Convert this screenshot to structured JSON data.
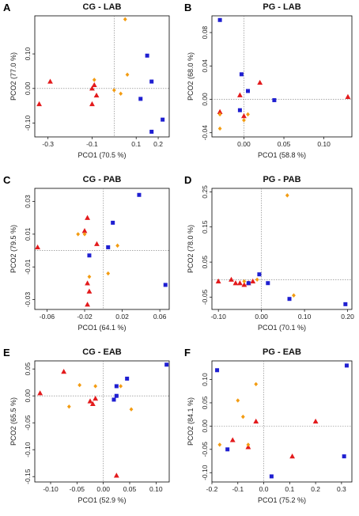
{
  "colors": {
    "LAB_red": "#e31a1c",
    "orange": "#f39c12",
    "blue": "#1f1fd1"
  },
  "chart_data": [
    {
      "letter": "A",
      "title": "CG - LAB",
      "type": "scatter",
      "xlabel": "PCO1 (70.5 %)",
      "ylabel": "PCO2 (77.0 %)",
      "xlim": [
        -0.36,
        0.25
      ],
      "ylim": [
        -0.14,
        0.21
      ],
      "xticks": [
        -0.3,
        -0.1,
        0.0,
        0.1,
        0.2
      ],
      "xticklabels": [
        "-0.3",
        "-0.1",
        "0.1",
        "0.2"
      ],
      "xticks_show": [
        -0.3,
        -0.1,
        0.1,
        0.2
      ],
      "yticks": [
        -0.1,
        0.0,
        0.1
      ],
      "yticklabels": [
        "-0.10",
        "0.00",
        "0.10"
      ],
      "series": [
        {
          "shape": "triangle",
          "color": "#e31a1c",
          "points": [
            [
              -0.34,
              -0.045
            ],
            [
              -0.29,
              0.02
            ],
            [
              -0.1,
              0.0
            ],
            [
              -0.09,
              0.01
            ],
            [
              -0.08,
              -0.02
            ],
            [
              -0.1,
              -0.045
            ]
          ]
        },
        {
          "shape": "diamond",
          "color": "#f39c12",
          "points": [
            [
              -0.09,
              0.025
            ],
            [
              0.0,
              -0.005
            ],
            [
              0.03,
              -0.015
            ],
            [
              0.06,
              0.04
            ],
            [
              0.05,
              0.2
            ]
          ]
        },
        {
          "shape": "square",
          "color": "#1f1fd1",
          "points": [
            [
              0.15,
              0.095
            ],
            [
              0.17,
              0.02
            ],
            [
              0.12,
              -0.03
            ],
            [
              0.22,
              -0.09
            ],
            [
              0.17,
              -0.125
            ]
          ]
        }
      ]
    },
    {
      "letter": "B",
      "title": "PG - LAB",
      "type": "scatter",
      "xlabel": "PCO1 (58.8 %)",
      "ylabel": "PCO2 (68.0 %)",
      "xlim": [
        -0.04,
        0.135
      ],
      "ylim": [
        -0.045,
        0.1
      ],
      "xticks_show": [
        0.0,
        0.05,
        0.1
      ],
      "xticklabels": [
        "0.00",
        "0.05",
        "0.10"
      ],
      "yticks": [
        -0.04,
        0.0,
        0.04,
        0.08
      ],
      "yticklabels": [
        "-0.04",
        "0.00",
        "0.04",
        "0.08"
      ],
      "series": [
        {
          "shape": "triangle",
          "color": "#e31a1c",
          "points": [
            [
              -0.03,
              -0.015
            ],
            [
              -0.005,
              0.005
            ],
            [
              0.02,
              0.02
            ],
            [
              0.0,
              -0.02
            ],
            [
              0.13,
              0.003
            ]
          ]
        },
        {
          "shape": "diamond",
          "color": "#f39c12",
          "points": [
            [
              -0.03,
              -0.018
            ],
            [
              -0.03,
              -0.035
            ],
            [
              0.0,
              -0.025
            ],
            [
              0.005,
              -0.018
            ]
          ]
        },
        {
          "shape": "square",
          "color": "#1f1fd1",
          "points": [
            [
              -0.03,
              0.095
            ],
            [
              -0.003,
              0.03
            ],
            [
              0.005,
              0.01
            ],
            [
              0.038,
              -0.001
            ],
            [
              -0.005,
              -0.013
            ]
          ]
        }
      ]
    },
    {
      "letter": "C",
      "title": "CG - PAB",
      "type": "scatter",
      "xlabel": "PCO1 (64.1 %)",
      "ylabel": "PCO2 (79.5 %)",
      "xlim": [
        -0.073,
        0.07
      ],
      "ylim": [
        -0.036,
        0.038
      ],
      "xticks_show": [
        -0.06,
        -0.02,
        0.02,
        0.06
      ],
      "xticklabels": [
        "-0.06",
        "-0.02",
        "0.02",
        "0.06"
      ],
      "yticks": [
        -0.03,
        -0.01,
        0.01,
        0.03
      ],
      "yticklabels": [
        "-0.03",
        "-0.01",
        "0.01",
        "0.03"
      ],
      "series": [
        {
          "shape": "triangle",
          "color": "#e31a1c",
          "points": [
            [
              -0.07,
              0.002
            ],
            [
              -0.017,
              0.02
            ],
            [
              -0.02,
              0.012
            ],
            [
              -0.007,
              0.004
            ],
            [
              -0.017,
              -0.02
            ],
            [
              -0.015,
              -0.025
            ],
            [
              -0.017,
              -0.033
            ]
          ]
        },
        {
          "shape": "diamond",
          "color": "#f39c12",
          "points": [
            [
              -0.027,
              0.01
            ],
            [
              -0.02,
              0.01
            ],
            [
              0.015,
              0.003
            ],
            [
              -0.015,
              -0.016
            ],
            [
              0.005,
              -0.014
            ]
          ]
        },
        {
          "shape": "square",
          "color": "#1f1fd1",
          "points": [
            [
              0.038,
              0.034
            ],
            [
              0.01,
              0.017
            ],
            [
              0.005,
              0.002
            ],
            [
              -0.015,
              -0.003
            ],
            [
              0.066,
              -0.021
            ]
          ]
        }
      ]
    },
    {
      "letter": "D",
      "title": "PG - PAB",
      "type": "scatter",
      "xlabel": "PCO1 (70.1 %)",
      "ylabel": "PCO2 (78.0 %)",
      "xlim": [
        -0.115,
        0.21
      ],
      "ylim": [
        -0.085,
        0.26
      ],
      "xticks_show": [
        -0.1,
        0.0,
        0.1,
        0.2
      ],
      "xticklabels": [
        "-0.10",
        "0.00",
        "0.10",
        "0.20"
      ],
      "yticks": [
        -0.05,
        0.05,
        0.15,
        0.25
      ],
      "yticklabels": [
        "-0.05",
        "0.05",
        "0.15",
        "0.25"
      ],
      "series": [
        {
          "shape": "triangle",
          "color": "#e31a1c",
          "points": [
            [
              -0.1,
              -0.005
            ],
            [
              -0.07,
              0.0
            ],
            [
              -0.06,
              -0.01
            ],
            [
              -0.05,
              -0.01
            ],
            [
              -0.04,
              -0.015
            ],
            [
              -0.03,
              -0.01
            ],
            [
              -0.02,
              -0.005
            ]
          ]
        },
        {
          "shape": "diamond",
          "color": "#f39c12",
          "points": [
            [
              -0.04,
              -0.005
            ],
            [
              -0.01,
              0.0
            ],
            [
              0.06,
              0.24
            ],
            [
              0.075,
              -0.045
            ]
          ]
        },
        {
          "shape": "square",
          "color": "#1f1fd1",
          "points": [
            [
              -0.03,
              -0.01
            ],
            [
              -0.005,
              0.015
            ],
            [
              0.015,
              -0.01
            ],
            [
              0.065,
              -0.055
            ],
            [
              0.195,
              -0.07
            ]
          ]
        }
      ]
    },
    {
      "letter": "E",
      "title": "CG - EAB",
      "type": "scatter",
      "xlabel": "PCO1 (52.9 %)",
      "ylabel": "PCO2 (65.5 %)",
      "xlim": [
        -0.13,
        0.125
      ],
      "ylim": [
        -0.16,
        0.065
      ],
      "xticks_show": [
        -0.1,
        -0.05,
        0.0,
        0.05,
        0.1
      ],
      "xticklabels": [
        "-0.10",
        "-0.05",
        "0.00",
        "0.05",
        "0.10"
      ],
      "yticks": [
        -0.15,
        -0.1,
        -0.05,
        0.0,
        0.05
      ],
      "yticklabels": [
        "-0.15",
        "-0.10",
        "-0.05",
        "0.00",
        "0.05"
      ],
      "series": [
        {
          "shape": "triangle",
          "color": "#e31a1c",
          "points": [
            [
              -0.12,
              0.005
            ],
            [
              -0.075,
              0.045
            ],
            [
              -0.025,
              -0.01
            ],
            [
              -0.02,
              -0.015
            ],
            [
              -0.015,
              -0.005
            ],
            [
              0.025,
              -0.148
            ]
          ]
        },
        {
          "shape": "diamond",
          "color": "#f39c12",
          "points": [
            [
              -0.045,
              0.02
            ],
            [
              -0.065,
              -0.02
            ],
            [
              -0.015,
              0.018
            ],
            [
              0.033,
              0.018
            ],
            [
              0.053,
              -0.025
            ]
          ]
        },
        {
          "shape": "square",
          "color": "#1f1fd1",
          "points": [
            [
              0.045,
              0.032
            ],
            [
              0.025,
              0.018
            ],
            [
              0.025,
              0.0
            ],
            [
              0.02,
              -0.007
            ],
            [
              0.12,
              0.058
            ]
          ]
        }
      ]
    },
    {
      "letter": "F",
      "title": "PG - EAB",
      "type": "scatter",
      "xlabel": "PCO1 (75.2 %)",
      "ylabel": "PCO2 (84.1 %)",
      "xlim": [
        -0.2,
        0.34
      ],
      "ylim": [
        -0.12,
        0.14
      ],
      "xticks_show": [
        -0.2,
        -0.1,
        0.0,
        0.1,
        0.2,
        0.3
      ],
      "xticklabels": [
        "-0.2",
        "-0.1",
        "0.0",
        "0.1",
        "0.2",
        "0.3"
      ],
      "yticks": [
        -0.1,
        -0.05,
        0.0,
        0.05,
        0.1
      ],
      "yticklabels": [
        "-0.10",
        "-0.05",
        "0.00",
        "0.05",
        "0.10"
      ],
      "series": [
        {
          "shape": "triangle",
          "color": "#e31a1c",
          "points": [
            [
              -0.12,
              -0.03
            ],
            [
              -0.06,
              -0.045
            ],
            [
              -0.03,
              0.01
            ],
            [
              0.11,
              -0.065
            ],
            [
              0.2,
              0.01
            ]
          ]
        },
        {
          "shape": "diamond",
          "color": "#f39c12",
          "points": [
            [
              -0.17,
              -0.04
            ],
            [
              -0.1,
              0.055
            ],
            [
              -0.08,
              0.02
            ],
            [
              -0.03,
              0.09
            ],
            [
              -0.06,
              -0.04
            ]
          ]
        },
        {
          "shape": "square",
          "color": "#1f1fd1",
          "points": [
            [
              -0.18,
              0.12
            ],
            [
              -0.14,
              -0.05
            ],
            [
              0.03,
              -0.108
            ],
            [
              0.32,
              0.13
            ],
            [
              0.31,
              -0.065
            ]
          ]
        }
      ]
    }
  ]
}
